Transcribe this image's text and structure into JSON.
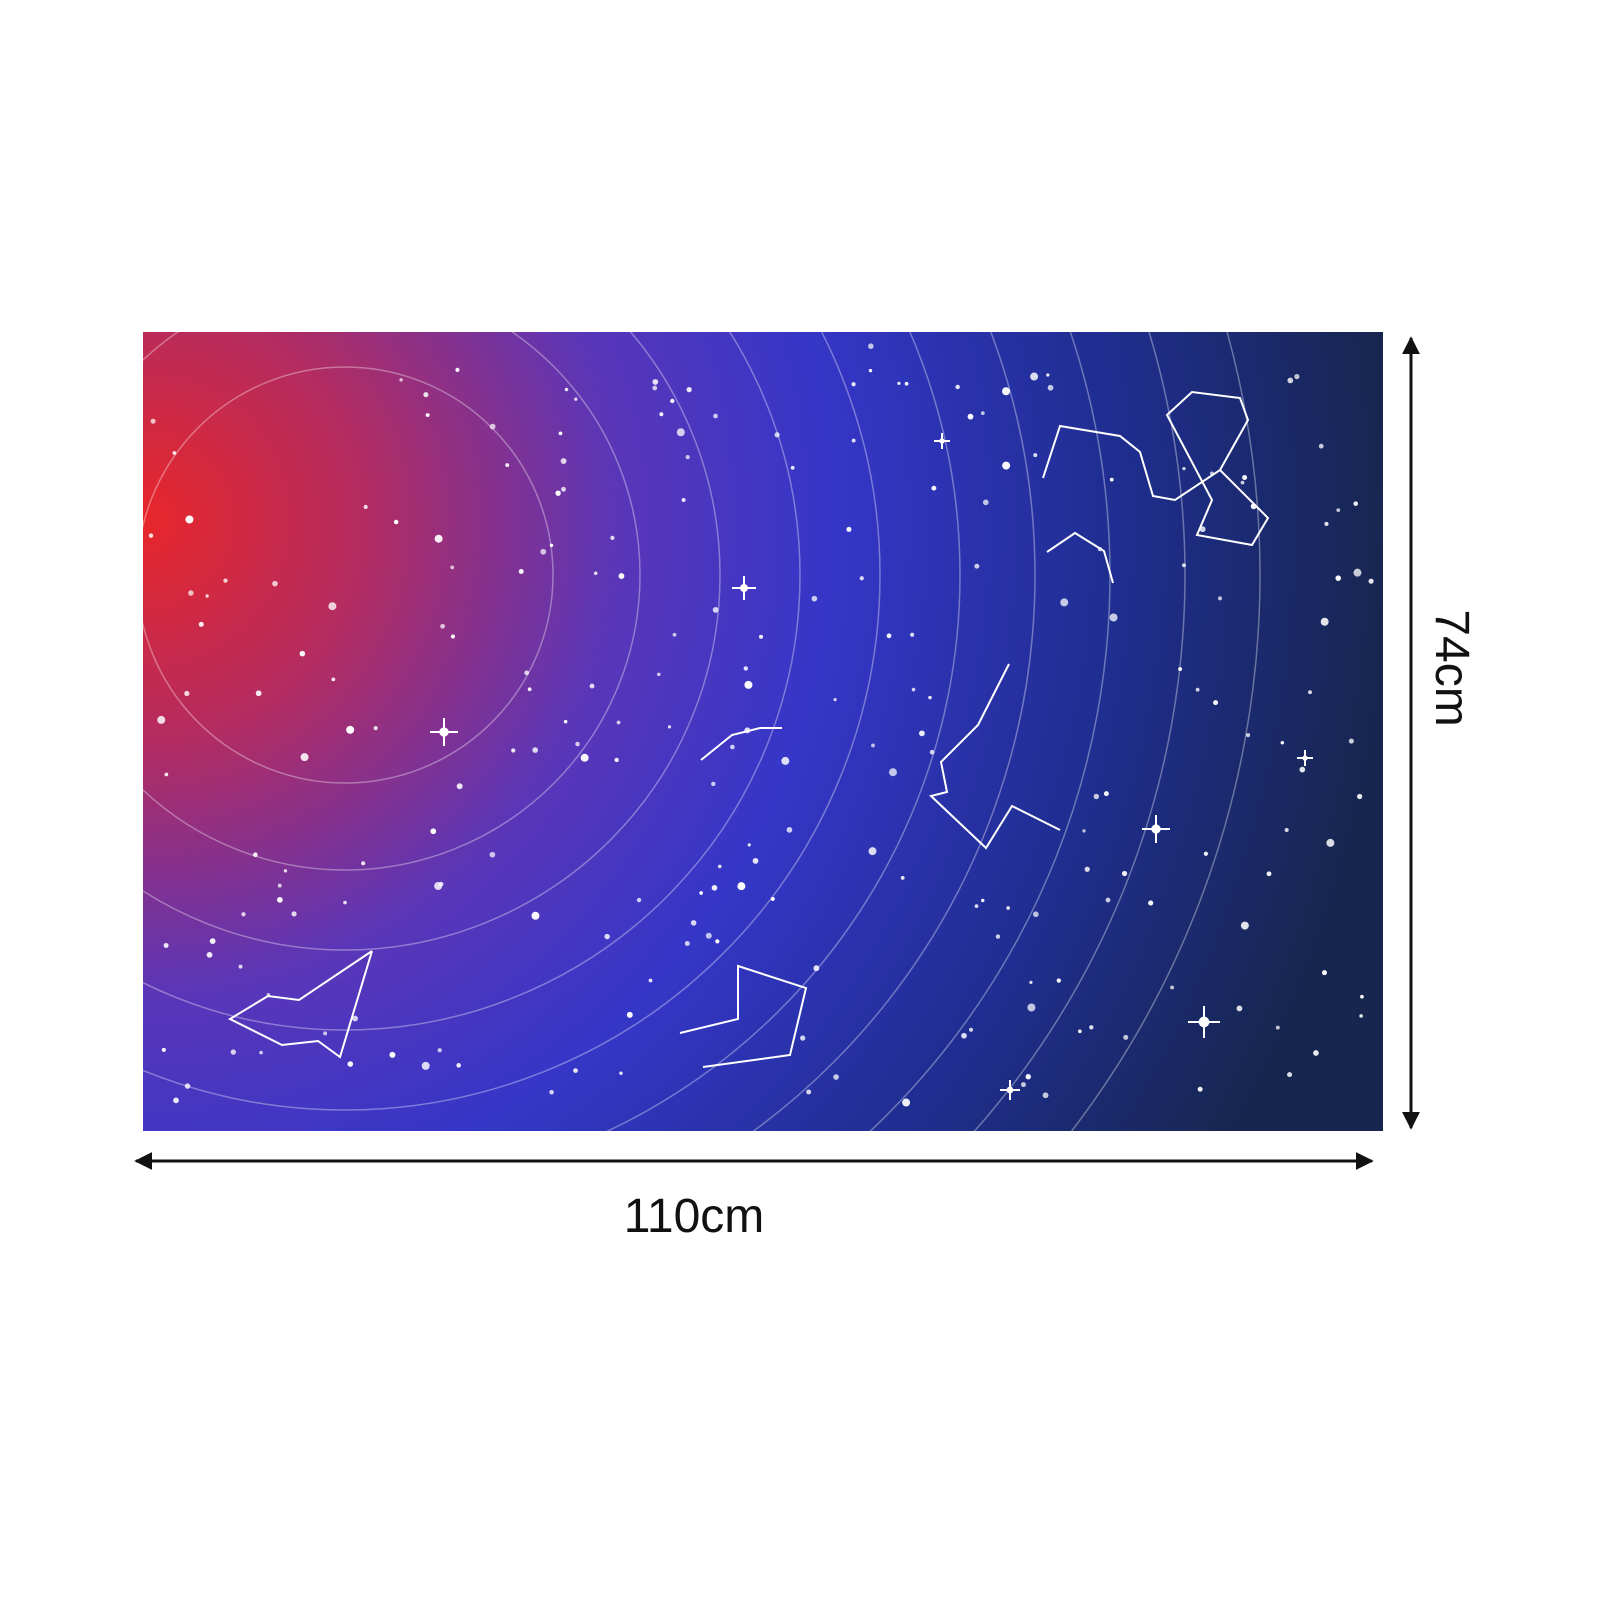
{
  "dimensions": {
    "width": "110cm",
    "height": "74cm"
  }
}
